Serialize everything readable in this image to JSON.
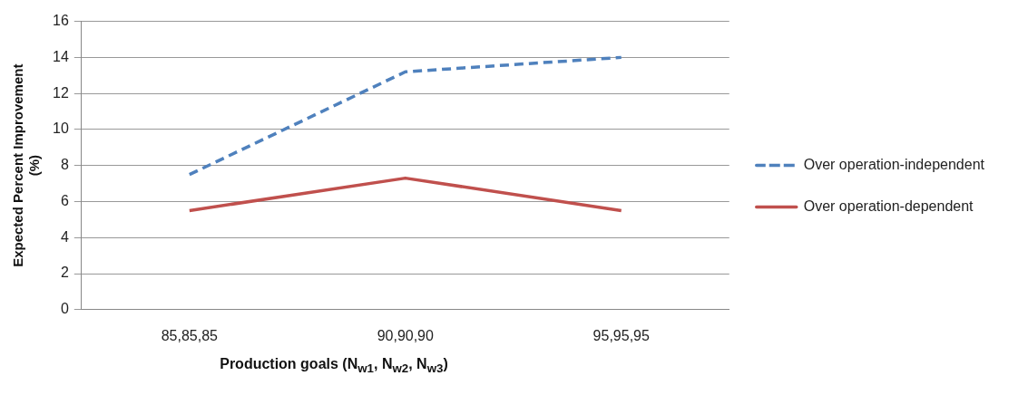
{
  "chart_data": {
    "type": "line",
    "xlabel": "Production goals (N$_{w1}$, N$_{w2}$, N$_{w3}$)",
    "ylabel": [
      "Expected Percent Improvement",
      "(%)"
    ],
    "categories": [
      "85,85,85",
      "90,90,90",
      "95,95,95"
    ],
    "series": [
      {
        "name": "Over operation-independent",
        "color": "#4f81bd",
        "values": [
          7.5,
          13.2,
          14.0
        ],
        "line_style": "dashed"
      },
      {
        "name": "Over operation-dependent",
        "color": "#c0504d",
        "values": [
          5.5,
          7.3,
          5.5
        ],
        "line_style": "solid"
      }
    ],
    "ylim": [
      0,
      16
    ],
    "yticks": [
      0,
      2,
      4,
      6,
      8,
      10,
      12,
      14,
      16
    ],
    "grid": "y",
    "legend": "right",
    "marker": "none"
  }
}
